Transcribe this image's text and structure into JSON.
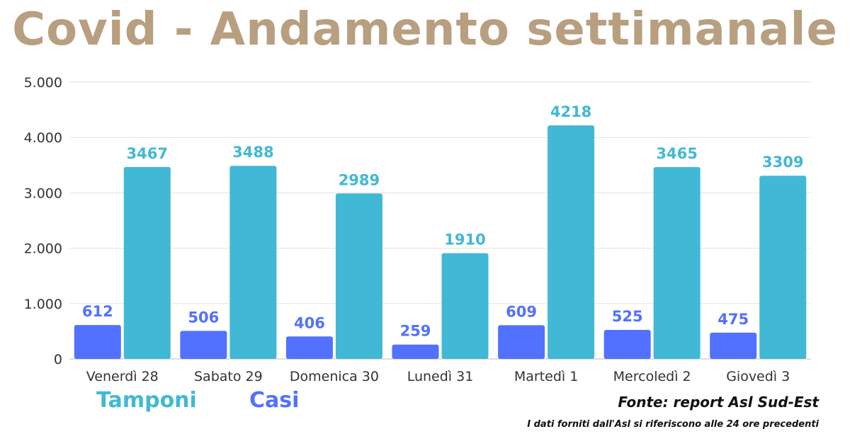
{
  "title": "Covid - Andamento settimanale",
  "colors": {
    "title": "#b89f80",
    "tamponi": "#41b8d5",
    "casi": "#5271ff"
  },
  "legend": {
    "tamponi": "Tamponi",
    "casi": "Casi"
  },
  "source": "Fonte: report Asl Sud-Est",
  "note": "I dati forniti dall'Asl si riferiscono alle 24 ore precedenti",
  "chart_data": {
    "type": "bar",
    "title": "Covid - Andamento settimanale",
    "xlabel": "",
    "ylabel": "",
    "ylim": [
      0,
      5000
    ],
    "yticks": [
      0,
      1000,
      2000,
      3000,
      4000,
      5000
    ],
    "ytick_labels": [
      "0",
      "1.000",
      "2.000",
      "3.000",
      "4.000",
      "5.000"
    ],
    "grid": true,
    "legend_position": "bottom-left",
    "categories": [
      "Venerdì 28",
      "Sabato 29",
      "Domenica 30",
      "Lunedì 31",
      "Martedì 1",
      "Mercoledì 2",
      "Giovedì 3"
    ],
    "series": [
      {
        "name": "Casi",
        "color": "#5271ff",
        "values": [
          612,
          506,
          406,
          259,
          609,
          525,
          475
        ]
      },
      {
        "name": "Tamponi",
        "color": "#41b8d5",
        "values": [
          3467,
          3488,
          2989,
          1910,
          4218,
          3465,
          3309
        ]
      }
    ]
  }
}
